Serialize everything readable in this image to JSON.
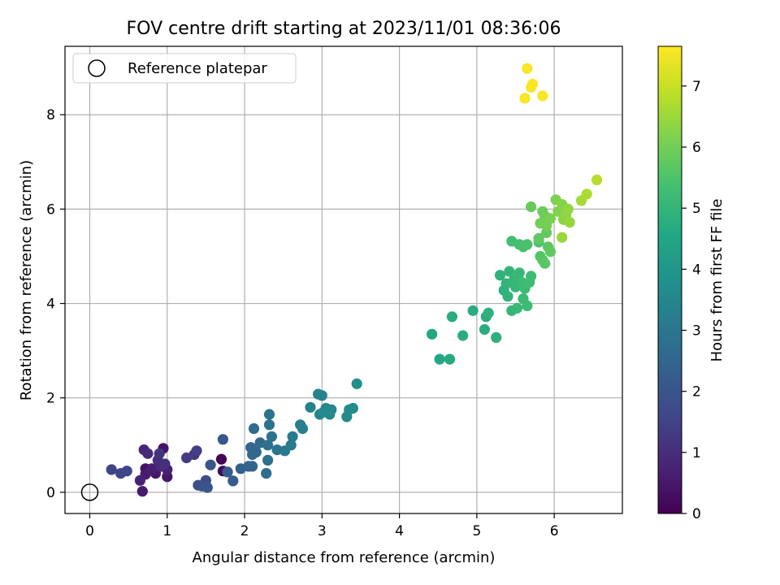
{
  "chart_data": {
    "type": "scatter",
    "title": "FOV centre drift starting at 2023/11/01 08:36:06",
    "xlabel": "Angular distance from reference (arcmin)",
    "ylabel": "Rotation from reference (arcmin)",
    "xlim": [
      -0.32,
      6.88
    ],
    "ylim": [
      -0.45,
      9.45
    ],
    "xticks": [
      0,
      1,
      2,
      3,
      4,
      5,
      6
    ],
    "yticks": [
      0,
      2,
      4,
      6,
      8
    ],
    "grid": true,
    "legend": {
      "placement": "upper-left",
      "label": "Reference platepar"
    },
    "reference_point": {
      "x": 0,
      "y": 0
    },
    "colorbar": {
      "label": "Hours from first FF file",
      "colormap": "viridis",
      "range": [
        0,
        7.65
      ],
      "ticks": [
        0,
        1,
        2,
        3,
        4,
        5,
        6,
        7
      ]
    },
    "series": [
      {
        "columns": [
          "x",
          "y",
          "hours"
        ],
        "points": [
          [
            1.7,
            0.7,
            0.05
          ],
          [
            1.72,
            0.45,
            0.2
          ],
          [
            0.72,
            0.5,
            0.35
          ],
          [
            0.95,
            0.93,
            0.4
          ],
          [
            1.0,
            0.33,
            0.45
          ],
          [
            0.85,
            0.4,
            0.5
          ],
          [
            0.68,
            0.02,
            0.55
          ],
          [
            0.72,
            0.38,
            0.6
          ],
          [
            0.8,
            0.5,
            0.65
          ],
          [
            1.0,
            0.48,
            0.7
          ],
          [
            0.65,
            0.25,
            0.75
          ],
          [
            0.7,
            0.9,
            0.8
          ],
          [
            0.75,
            0.82,
            0.9
          ],
          [
            0.92,
            0.55,
            0.95
          ],
          [
            0.88,
            0.68,
            1.0
          ],
          [
            0.97,
            0.6,
            1.05
          ],
          [
            0.9,
            0.82,
            1.15
          ],
          [
            1.35,
            0.8,
            1.25
          ],
          [
            1.25,
            0.73,
            1.35
          ],
          [
            1.38,
            0.88,
            1.4
          ],
          [
            0.28,
            0.48,
            1.5
          ],
          [
            0.4,
            0.4,
            1.55
          ],
          [
            0.48,
            0.45,
            1.6
          ],
          [
            1.5,
            0.25,
            1.75
          ],
          [
            1.4,
            0.15,
            1.85
          ],
          [
            1.45,
            0.13,
            1.95
          ],
          [
            1.52,
            0.1,
            2.0
          ],
          [
            1.56,
            0.58,
            2.05
          ],
          [
            1.72,
            1.12,
            2.1
          ],
          [
            1.78,
            0.43,
            2.15
          ],
          [
            1.85,
            0.24,
            2.2
          ],
          [
            1.95,
            0.5,
            2.3
          ],
          [
            2.05,
            0.55,
            2.4
          ],
          [
            2.1,
            0.55,
            2.45
          ],
          [
            2.08,
            0.95,
            2.5
          ],
          [
            2.15,
            0.85,
            2.55
          ],
          [
            2.1,
            0.8,
            2.6
          ],
          [
            2.2,
            1.05,
            2.65
          ],
          [
            2.12,
            1.35,
            2.7
          ],
          [
            2.28,
            0.4,
            2.75
          ],
          [
            2.3,
            0.68,
            2.8
          ],
          [
            2.3,
            1.0,
            2.85
          ],
          [
            2.32,
            1.43,
            2.9
          ],
          [
            2.35,
            1.18,
            2.95
          ],
          [
            2.32,
            1.65,
            2.95
          ],
          [
            2.42,
            0.9,
            3.0
          ],
          [
            2.52,
            0.88,
            3.05
          ],
          [
            2.6,
            1.0,
            3.1
          ],
          [
            2.62,
            1.18,
            3.15
          ],
          [
            2.72,
            1.43,
            3.2
          ],
          [
            2.75,
            1.35,
            3.25
          ],
          [
            2.85,
            1.8,
            3.3
          ],
          [
            2.95,
            2.08,
            3.35
          ],
          [
            3.0,
            2.05,
            3.4
          ],
          [
            2.97,
            1.65,
            3.45
          ],
          [
            3.05,
            1.78,
            3.5
          ],
          [
            3.1,
            1.65,
            3.55
          ],
          [
            3.12,
            1.75,
            3.55
          ],
          [
            3.02,
            1.7,
            3.6
          ],
          [
            3.32,
            1.6,
            3.65
          ],
          [
            3.35,
            1.75,
            3.65
          ],
          [
            3.4,
            1.78,
            3.7
          ],
          [
            3.45,
            2.3,
            3.75
          ],
          [
            4.42,
            3.35,
            4.55
          ],
          [
            4.52,
            2.82,
            4.6
          ],
          [
            4.65,
            2.82,
            4.65
          ],
          [
            4.68,
            3.72,
            4.7
          ],
          [
            4.82,
            3.32,
            4.75
          ],
          [
            4.95,
            3.85,
            4.75
          ],
          [
            5.1,
            3.45,
            4.8
          ],
          [
            5.12,
            3.72,
            4.8
          ],
          [
            5.15,
            3.8,
            4.85
          ],
          [
            5.25,
            3.28,
            4.85
          ],
          [
            5.3,
            4.6,
            4.9
          ],
          [
            5.35,
            4.28,
            4.9
          ],
          [
            5.38,
            4.42,
            4.95
          ],
          [
            5.4,
            4.15,
            4.95
          ],
          [
            5.42,
            4.68,
            5.0
          ],
          [
            5.45,
            3.85,
            5.0
          ],
          [
            5.48,
            4.5,
            5.05
          ],
          [
            5.5,
            4.35,
            5.05
          ],
          [
            5.52,
            3.9,
            5.1
          ],
          [
            5.55,
            4.65,
            5.1
          ],
          [
            5.58,
            4.45,
            5.15
          ],
          [
            5.6,
            4.1,
            5.15
          ],
          [
            5.62,
            4.32,
            5.2
          ],
          [
            5.65,
            3.95,
            5.2
          ],
          [
            5.68,
            4.45,
            5.25
          ],
          [
            5.7,
            4.58,
            5.25
          ],
          [
            5.45,
            5.32,
            5.3
          ],
          [
            5.55,
            5.25,
            5.35
          ],
          [
            5.6,
            5.2,
            5.4
          ],
          [
            5.65,
            5.25,
            5.45
          ],
          [
            5.8,
            5.3,
            5.5
          ],
          [
            5.82,
            5.0,
            5.55
          ],
          [
            5.85,
            4.92,
            5.6
          ],
          [
            5.88,
            4.85,
            5.65
          ],
          [
            5.92,
            5.2,
            5.7
          ],
          [
            5.95,
            5.1,
            5.75
          ],
          [
            5.8,
            5.38,
            5.75
          ],
          [
            5.9,
            5.5,
            5.8
          ],
          [
            5.7,
            6.05,
            5.85
          ],
          [
            5.85,
            5.95,
            5.9
          ],
          [
            5.88,
            5.85,
            5.95
          ],
          [
            5.82,
            5.7,
            6.0
          ],
          [
            5.9,
            5.65,
            6.05
          ],
          [
            5.95,
            5.8,
            6.1
          ],
          [
            6.02,
            6.2,
            6.15
          ],
          [
            6.05,
            5.95,
            6.2
          ],
          [
            6.1,
            6.1,
            6.25
          ],
          [
            6.12,
            5.78,
            6.3
          ],
          [
            6.15,
            5.88,
            6.35
          ],
          [
            6.18,
            6.0,
            6.4
          ],
          [
            6.2,
            5.72,
            6.45
          ],
          [
            6.1,
            5.4,
            6.5
          ],
          [
            6.35,
            6.18,
            6.6
          ],
          [
            6.42,
            6.32,
            6.7
          ],
          [
            6.55,
            6.62,
            6.8
          ],
          [
            5.65,
            8.98,
            7.6
          ],
          [
            5.72,
            8.65,
            7.6
          ],
          [
            5.7,
            8.58,
            7.6
          ],
          [
            5.62,
            8.35,
            7.6
          ],
          [
            5.85,
            8.4,
            7.6
          ]
        ]
      }
    ]
  }
}
